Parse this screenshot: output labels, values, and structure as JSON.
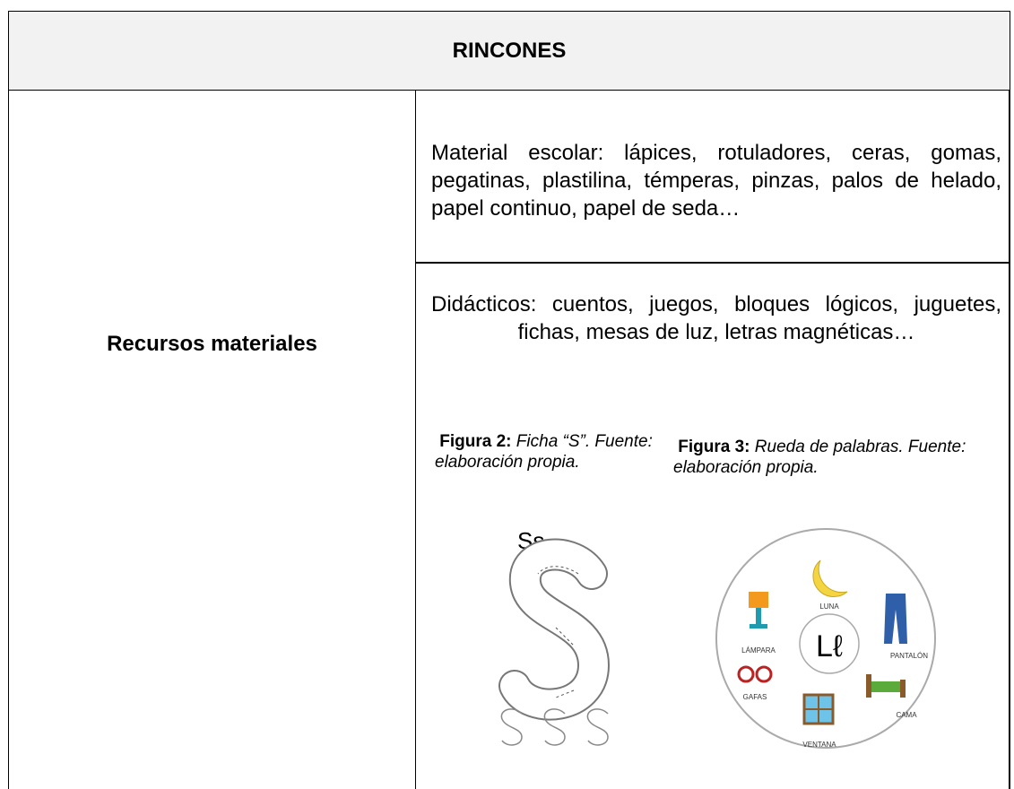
{
  "header": {
    "title": "RINCONES"
  },
  "table": {
    "row_label": "Recursos materiales",
    "cells": [
      "Material escolar: lápices, rotuladores, ceras, gomas, pegatinas, plastilina, témperas, pinzas, palos de helado, papel continuo, papel de seda…",
      "Didácticos: cuentos, juegos, bloques lógicos, juguetes, fichas, mesas de luz, letras magnéticas…"
    ]
  },
  "figures": [
    {
      "label": "Figura 2:",
      "caption": "Ficha “S”. Fuente: elaboración propia.",
      "image_text": "Ss"
    },
    {
      "label": "Figura 3:",
      "caption": "Rueda de palabras. Fuente: elaboración propia.",
      "center_text": "Lℓ",
      "words": [
        "LUNA",
        "LÁMPARA",
        "PANTALÓN",
        "GAFAS",
        "CAMA",
        "VENTANA"
      ]
    }
  ]
}
